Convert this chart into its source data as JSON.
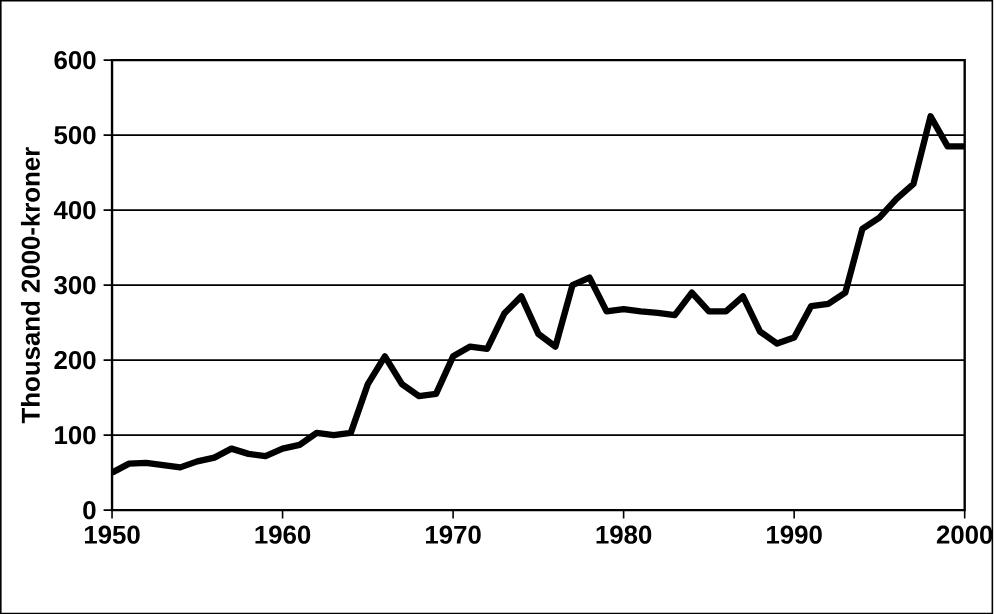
{
  "chart_data": {
    "type": "line",
    "ylabel": "Thousand 2000-kroner",
    "x": [
      1950,
      1951,
      1952,
      1953,
      1954,
      1955,
      1956,
      1957,
      1958,
      1959,
      1960,
      1961,
      1962,
      1963,
      1964,
      1965,
      1966,
      1967,
      1968,
      1969,
      1970,
      1971,
      1972,
      1973,
      1974,
      1975,
      1976,
      1977,
      1978,
      1979,
      1980,
      1981,
      1982,
      1983,
      1984,
      1985,
      1986,
      1987,
      1988,
      1989,
      1990,
      1991,
      1992,
      1993,
      1994,
      1995,
      1996,
      1997,
      1998,
      1999,
      2000
    ],
    "series": [
      {
        "color": "#000000",
        "values": [
          50,
          62,
          63,
          60,
          57,
          65,
          70,
          82,
          75,
          72,
          82,
          87,
          103,
          100,
          103,
          168,
          205,
          168,
          152,
          155,
          205,
          218,
          215,
          262,
          285,
          235,
          218,
          300,
          310,
          265,
          268,
          265,
          263,
          260,
          290,
          265,
          265,
          285,
          238,
          222,
          230,
          272,
          275,
          290,
          375,
          390,
          415,
          435,
          525,
          485,
          485
        ]
      }
    ],
    "xlim": [
      1950,
      2000
    ],
    "xticks": [
      1950,
      1960,
      1970,
      1980,
      1990,
      2000
    ],
    "ylim": [
      0,
      600
    ],
    "yticks": [
      0,
      100,
      200,
      300,
      400,
      500,
      600
    ],
    "grid": "y",
    "marker": "none",
    "line_style": "solid"
  }
}
